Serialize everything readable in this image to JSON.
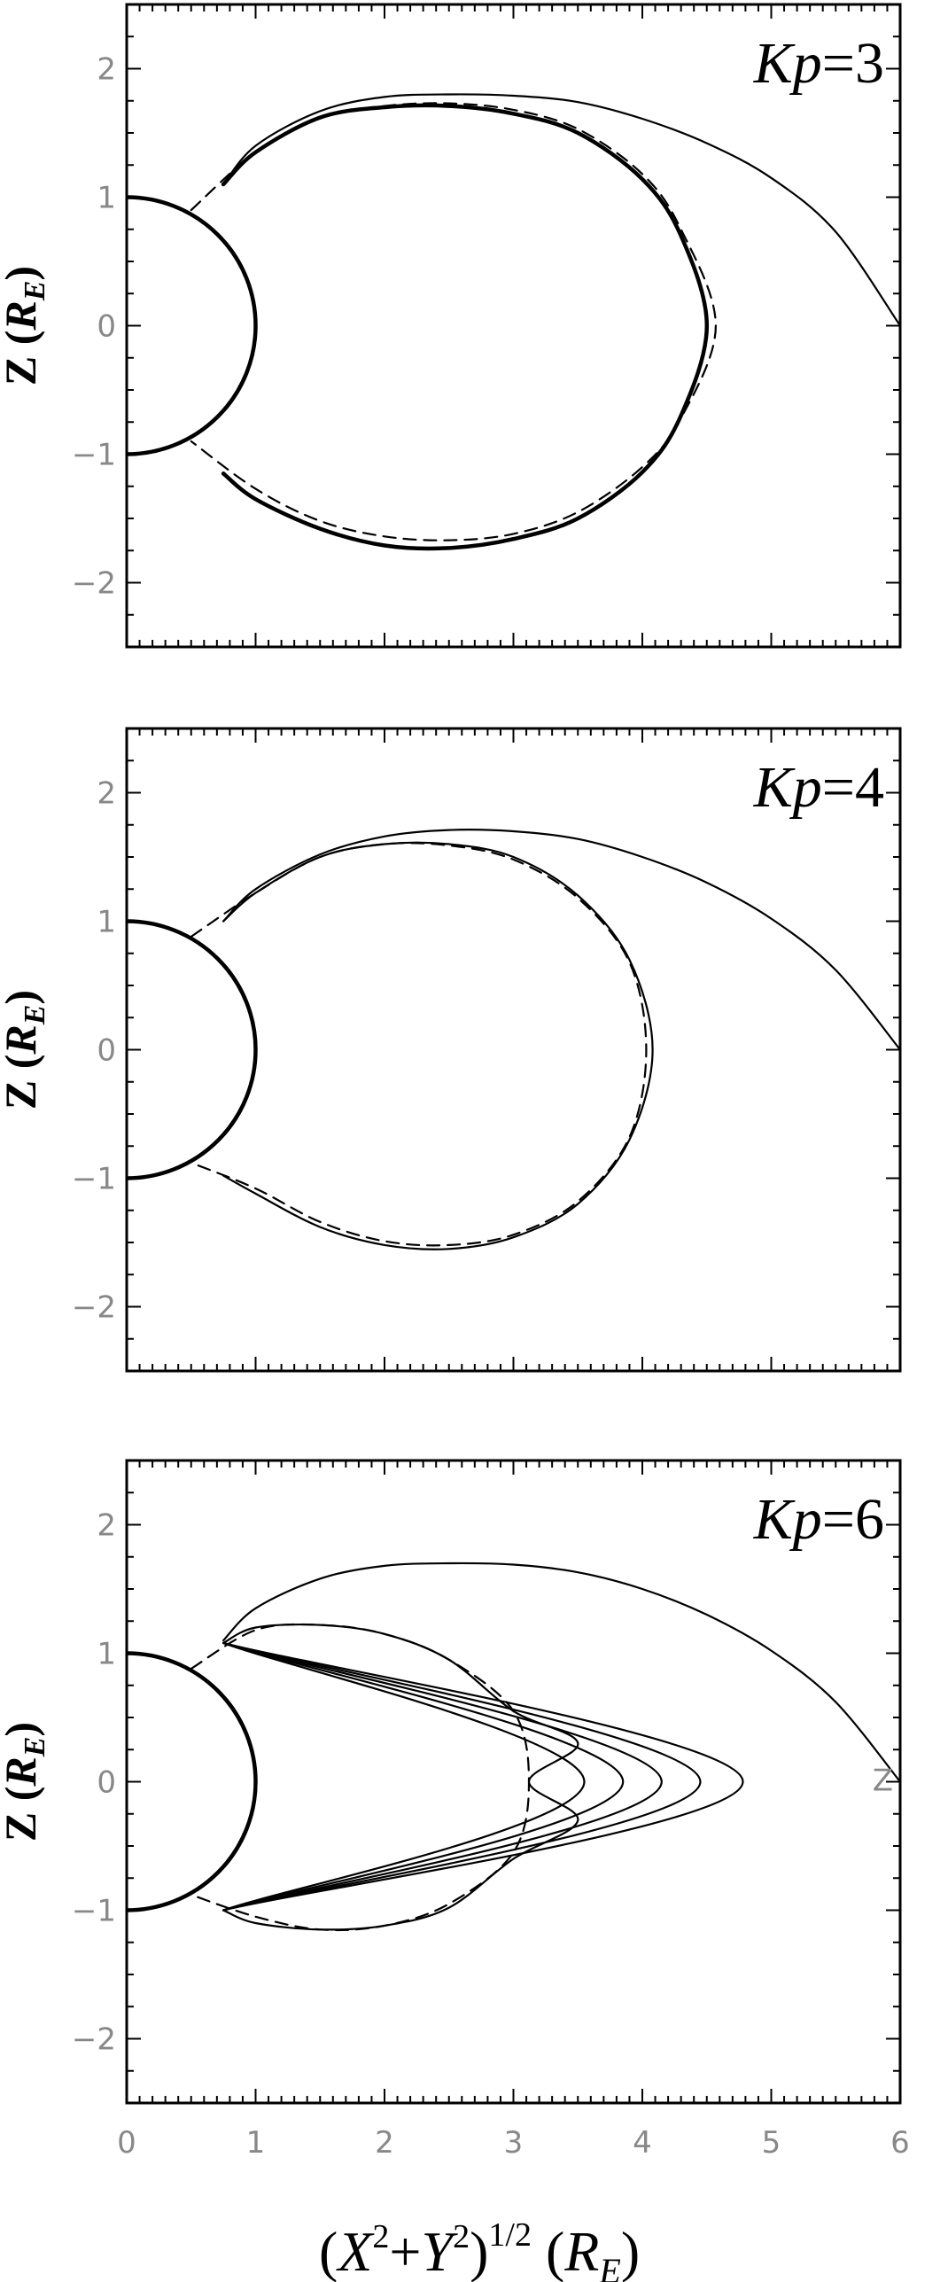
{
  "chart_data": [
    {
      "type": "line",
      "panel_label": "Kp=3",
      "label_var": "Kp",
      "label_val": "=3",
      "ylabel": "Z (R_E)",
      "xlim": [
        0,
        6
      ],
      "ylim": [
        -2.5,
        2.5
      ],
      "xticks": [
        0,
        1,
        2,
        3,
        4,
        5,
        6
      ],
      "yticks": [
        -2,
        -1,
        0,
        1,
        2
      ],
      "ytick_labels": [
        "−2",
        "−1",
        "0",
        "1",
        "2"
      ],
      "series": [
        {
          "style": "thick-solid",
          "kind": "earth",
          "r": 1.0
        },
        {
          "style": "thin-solid",
          "x": [
            0.75,
            1.0,
            1.5,
            2.0,
            2.5,
            3.0,
            3.5,
            4.0,
            4.5,
            5.0,
            5.5,
            6.0
          ],
          "y": [
            1.1,
            1.4,
            1.67,
            1.78,
            1.8,
            1.79,
            1.74,
            1.61,
            1.42,
            1.15,
            0.73,
            0.0
          ]
        },
        {
          "style": "thick-solid",
          "x": [
            0.75,
            1.0,
            1.5,
            2.0,
            2.5,
            3.0,
            3.5,
            4.0,
            4.3,
            4.5,
            4.3,
            4.0,
            3.5,
            3.0,
            2.5,
            2.0,
            1.5,
            1.0,
            0.75
          ],
          "y": [
            1.1,
            1.35,
            1.62,
            1.7,
            1.71,
            1.65,
            1.5,
            1.14,
            0.7,
            0.0,
            -0.7,
            -1.14,
            -1.5,
            -1.66,
            -1.73,
            -1.71,
            -1.58,
            -1.35,
            -1.15
          ]
        },
        {
          "style": "dashed",
          "x": [
            0.5,
            1.0,
            1.5,
            2.0,
            2.5,
            3.0,
            3.5,
            4.0,
            4.3,
            4.57,
            4.3,
            4.0,
            3.5,
            3.0,
            2.5,
            2.0,
            1.5,
            1.0,
            0.5
          ],
          "y": [
            0.9,
            1.35,
            1.62,
            1.71,
            1.73,
            1.68,
            1.53,
            1.18,
            0.75,
            0.0,
            -0.72,
            -1.1,
            -1.45,
            -1.62,
            -1.67,
            -1.64,
            -1.52,
            -1.27,
            -0.9
          ]
        }
      ]
    },
    {
      "type": "line",
      "panel_label": "Kp=4",
      "label_var": "Kp",
      "label_val": "=4",
      "ylabel": "Z (R_E)",
      "xlim": [
        0,
        6
      ],
      "ylim": [
        -2.5,
        2.5
      ],
      "xticks": [
        0,
        1,
        2,
        3,
        4,
        5,
        6
      ],
      "yticks": [
        -2,
        -1,
        0,
        1,
        2
      ],
      "ytick_labels": [
        "−2",
        "−1",
        "0",
        "1",
        "2"
      ],
      "series": [
        {
          "style": "thick-solid",
          "kind": "earth",
          "r": 1.0
        },
        {
          "style": "thin-solid",
          "x": [
            0.75,
            1.0,
            1.5,
            2.0,
            2.5,
            3.0,
            3.5,
            4.0,
            4.5,
            5.0,
            5.5,
            6.0
          ],
          "y": [
            1.0,
            1.25,
            1.52,
            1.66,
            1.71,
            1.7,
            1.64,
            1.5,
            1.3,
            1.02,
            0.62,
            0.0
          ]
        },
        {
          "style": "thin-solid",
          "x": [
            0.75,
            1.0,
            1.5,
            2.0,
            2.5,
            3.0,
            3.5,
            3.9,
            4.08,
            3.9,
            3.5,
            3.0,
            2.5,
            2.0,
            1.5,
            1.0,
            0.75
          ],
          "y": [
            1.0,
            1.22,
            1.5,
            1.6,
            1.6,
            1.5,
            1.2,
            0.7,
            0.0,
            -0.7,
            -1.2,
            -1.46,
            -1.55,
            -1.52,
            -1.38,
            -1.12,
            -0.98
          ]
        },
        {
          "style": "dashed",
          "x": [
            0.5,
            1.0,
            1.5,
            2.0,
            2.5,
            3.0,
            3.5,
            3.9,
            4.03,
            3.9,
            3.5,
            3.0,
            2.5,
            2.0,
            1.5,
            1.0,
            0.5
          ],
          "y": [
            0.88,
            1.22,
            1.5,
            1.6,
            1.59,
            1.48,
            1.18,
            0.68,
            0.0,
            -0.68,
            -1.18,
            -1.44,
            -1.52,
            -1.49,
            -1.34,
            -1.08,
            -0.88
          ]
        }
      ]
    },
    {
      "type": "line",
      "panel_label": "Kp=6",
      "label_var": "Kp",
      "label_val": "=6",
      "ylabel": "Z (R_E)",
      "xlabel": "(X2+Y2)1/2 (RE)",
      "xlim": [
        0,
        6
      ],
      "ylim": [
        -2.5,
        2.5
      ],
      "xticks": [
        0,
        1,
        2,
        3,
        4,
        5,
        6
      ],
      "xtick_labels": [
        "0",
        "1",
        "2",
        "3",
        "4",
        "5",
        "6"
      ],
      "yticks": [
        -2,
        -1,
        0,
        1,
        2
      ],
      "ytick_labels": [
        "−2",
        "−1",
        "0",
        "1",
        "2"
      ],
      "annotation": "Z",
      "series": [
        {
          "style": "thick-solid",
          "kind": "earth",
          "r": 1.0
        },
        {
          "style": "thin-solid",
          "x": [
            0.75,
            1.0,
            1.5,
            2.0,
            2.5,
            3.0,
            3.5,
            4.0,
            4.5,
            5.0,
            5.5,
            6.0
          ],
          "y": [
            1.1,
            1.35,
            1.58,
            1.68,
            1.7,
            1.69,
            1.63,
            1.5,
            1.3,
            1.02,
            0.62,
            0.0
          ]
        },
        {
          "style": "thin-solid",
          "x": [
            0.75,
            1.0,
            1.5,
            2.0,
            2.5,
            3.0,
            3.5,
            3.12,
            3.5,
            3.0,
            2.5,
            2.0,
            1.5,
            1.0,
            0.75
          ],
          "y": [
            1.08,
            1.2,
            1.22,
            1.15,
            0.95,
            0.55,
            0.3,
            0.0,
            -0.3,
            -0.6,
            -0.98,
            -1.12,
            -1.15,
            -1.1,
            -1.0
          ]
        },
        {
          "style": "thin-solid",
          "x": [
            0.75,
            3.55,
            0.75
          ],
          "y": [
            1.08,
            0.0,
            -1.0
          ]
        },
        {
          "style": "thin-solid",
          "x": [
            0.75,
            3.85,
            0.75
          ],
          "y": [
            1.08,
            0.0,
            -1.0
          ]
        },
        {
          "style": "thin-solid",
          "x": [
            0.75,
            4.15,
            0.75
          ],
          "y": [
            1.08,
            0.0,
            -1.0
          ]
        },
        {
          "style": "thin-solid",
          "x": [
            0.75,
            4.45,
            0.75
          ],
          "y": [
            1.08,
            0.0,
            -1.0
          ]
        },
        {
          "style": "thin-solid",
          "x": [
            0.75,
            4.78,
            0.75
          ],
          "y": [
            1.08,
            0.0,
            -1.0
          ]
        },
        {
          "style": "dashed",
          "x": [
            0.5,
            1.0,
            1.5,
            2.0,
            2.5,
            3.0,
            3.12,
            3.0,
            2.5,
            2.0,
            1.5,
            1.0,
            0.5
          ],
          "y": [
            0.88,
            1.18,
            1.22,
            1.15,
            0.95,
            0.55,
            0.0,
            -0.55,
            -0.95,
            -1.12,
            -1.15,
            -1.05,
            -0.88
          ]
        }
      ]
    }
  ],
  "shared_xlabel": {
    "prefix": "(",
    "x": "X",
    "sup1": "2",
    "plus": "+",
    "y": "Y",
    "sup2": "2",
    "close": ")",
    "sup3": "1/2",
    "unit_open": " (",
    "unit": "R",
    "unit_sub": "E",
    "unit_close": ")"
  }
}
